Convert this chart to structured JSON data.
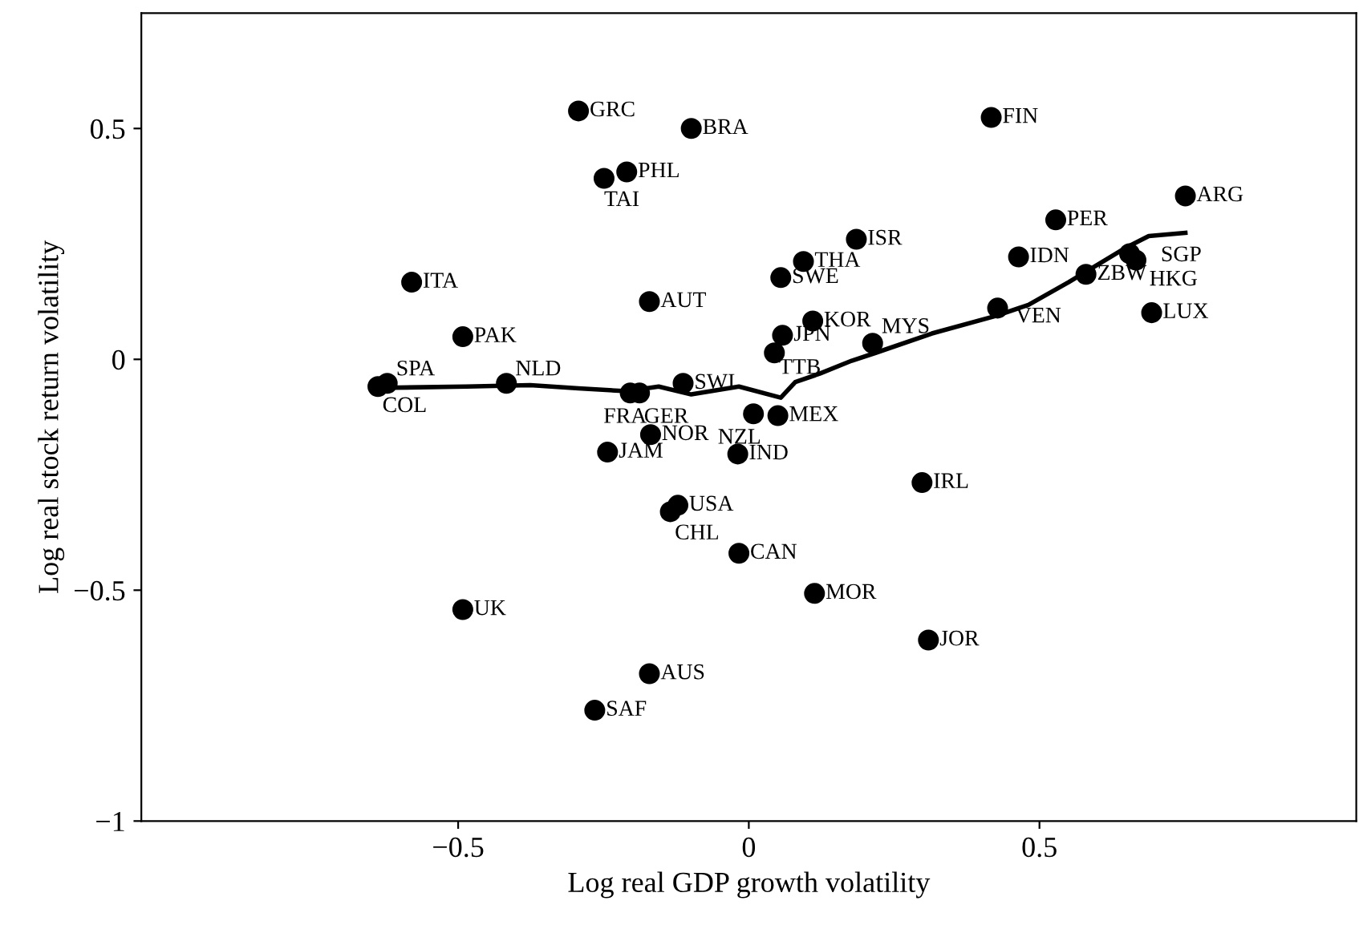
{
  "chart_data": {
    "type": "scatter",
    "xlabel": "Log real GDP growth volatility",
    "ylabel": "Log real stock return volatility",
    "xlim": [
      -1.045,
      1.045
    ],
    "ylim": [
      -1,
      0.75
    ],
    "xticks": [
      {
        "value": -0.5,
        "label": "−0.5"
      },
      0,
      0.5
    ],
    "yticks": [
      {
        "value": -1,
        "label": "−1"
      },
      {
        "value": -0.5,
        "label": "−0.5"
      },
      0,
      0.5
    ],
    "grid": false,
    "series": [
      {
        "marker": "circle",
        "color": "#000000",
        "x": [
          -0.293,
          -0.099,
          -0.21,
          -0.249,
          -0.58,
          -0.171,
          -0.492,
          -0.622,
          -0.638,
          -0.417,
          -0.204,
          -0.188,
          -0.113,
          0.008,
          0.05,
          -0.169,
          -0.243,
          -0.019,
          -0.122,
          -0.135,
          -0.017,
          0.113,
          -0.492,
          -0.171,
          -0.265,
          0.298,
          0.309,
          0.094,
          0.055,
          0.11,
          0.058,
          0.044,
          0.185,
          0.213,
          0.417,
          0.528,
          0.464,
          0.751,
          0.655,
          0.666,
          0.58,
          0.428,
          0.693
        ],
        "values": [
          0.538,
          0.5,
          0.406,
          0.392,
          0.167,
          0.125,
          0.049,
          -0.052,
          -0.059,
          -0.052,
          -0.073,
          -0.073,
          -0.052,
          -0.118,
          -0.122,
          -0.163,
          -0.201,
          -0.205,
          -0.316,
          -0.33,
          -0.42,
          -0.507,
          -0.542,
          -0.681,
          -0.76,
          -0.267,
          -0.608,
          0.212,
          0.177,
          0.083,
          0.052,
          0.014,
          0.26,
          0.035,
          0.524,
          0.302,
          0.222,
          0.354,
          0.229,
          0.215,
          0.184,
          0.111,
          0.101
        ]
      },
      {
        "type": "line",
        "color": "#000000",
        "line_style": "solid",
        "x": [
          -0.644,
          -0.486,
          -0.376,
          -0.293,
          -0.21,
          -0.155,
          -0.099,
          -0.017,
          0.055,
          0.08,
          0.122,
          0.177,
          0.218,
          0.315,
          0.425,
          0.481,
          0.55,
          0.646,
          0.688,
          0.751
        ],
        "values": [
          -0.062,
          -0.059,
          -0.056,
          -0.063,
          -0.069,
          -0.059,
          -0.076,
          -0.059,
          -0.083,
          -0.049,
          -0.031,
          -0.003,
          0.014,
          0.056,
          0.094,
          0.118,
          0.167,
          0.24,
          0.267,
          0.274
        ]
      }
    ],
    "annotations": [
      {
        "text": "GRC",
        "x": -0.293,
        "y": 0.538
      },
      {
        "text": "BRA",
        "x": -0.099,
        "y": 0.5
      },
      {
        "text": "PHL",
        "x": -0.21,
        "y": 0.406
      },
      {
        "text": "TAI",
        "x": -0.249,
        "y": 0.392
      },
      {
        "text": "ITA",
        "x": -0.58,
        "y": 0.167
      },
      {
        "text": "AUT",
        "x": -0.171,
        "y": 0.125
      },
      {
        "text": "PAK",
        "x": -0.492,
        "y": 0.049
      },
      {
        "text": "SPA",
        "x": -0.622,
        "y": -0.052
      },
      {
        "text": "COL",
        "x": -0.638,
        "y": -0.059
      },
      {
        "text": "NLD",
        "x": -0.417,
        "y": -0.052
      },
      {
        "text": "FRA",
        "x": -0.204,
        "y": -0.073
      },
      {
        "text": "GER",
        "x": -0.188,
        "y": -0.073
      },
      {
        "text": "SWI",
        "x": -0.113,
        "y": -0.052
      },
      {
        "text": "NZL",
        "x": 0.008,
        "y": -0.118
      },
      {
        "text": "MEX",
        "x": 0.05,
        "y": -0.122
      },
      {
        "text": "NOR",
        "x": -0.169,
        "y": -0.163
      },
      {
        "text": "JAM",
        "x": -0.243,
        "y": -0.201
      },
      {
        "text": "IND",
        "x": -0.019,
        "y": -0.205
      },
      {
        "text": "USA",
        "x": -0.122,
        "y": -0.316
      },
      {
        "text": "CHL",
        "x": -0.135,
        "y": -0.33
      },
      {
        "text": "CAN",
        "x": -0.017,
        "y": -0.42
      },
      {
        "text": "MOR",
        "x": 0.113,
        "y": -0.507
      },
      {
        "text": "UK",
        "x": -0.492,
        "y": -0.542
      },
      {
        "text": "AUS",
        "x": -0.171,
        "y": -0.681
      },
      {
        "text": "SAF",
        "x": -0.265,
        "y": -0.76
      },
      {
        "text": "IRL",
        "x": 0.298,
        "y": -0.267
      },
      {
        "text": "JOR",
        "x": 0.309,
        "y": -0.608
      },
      {
        "text": "THA",
        "x": 0.094,
        "y": 0.212
      },
      {
        "text": "SWE",
        "x": 0.055,
        "y": 0.177
      },
      {
        "text": "KOR",
        "x": 0.11,
        "y": 0.083
      },
      {
        "text": "JPN",
        "x": 0.058,
        "y": 0.052
      },
      {
        "text": "TTB",
        "x": 0.044,
        "y": 0.014
      },
      {
        "text": "ISR",
        "x": 0.185,
        "y": 0.26
      },
      {
        "text": "MYS",
        "x": 0.213,
        "y": 0.035
      },
      {
        "text": "FIN",
        "x": 0.417,
        "y": 0.524
      },
      {
        "text": "PER",
        "x": 0.528,
        "y": 0.302
      },
      {
        "text": "IDN",
        "x": 0.464,
        "y": 0.222
      },
      {
        "text": "ARG",
        "x": 0.751,
        "y": 0.354
      },
      {
        "text": "SGP",
        "x": 0.655,
        "y": 0.229
      },
      {
        "text": "HKG",
        "x": 0.666,
        "y": 0.215
      },
      {
        "text": "ZBW",
        "x": 0.58,
        "y": 0.184
      },
      {
        "text": "VEN",
        "x": 0.428,
        "y": 0.111
      },
      {
        "text": "LUX",
        "x": 0.693,
        "y": 0.101
      }
    ]
  }
}
